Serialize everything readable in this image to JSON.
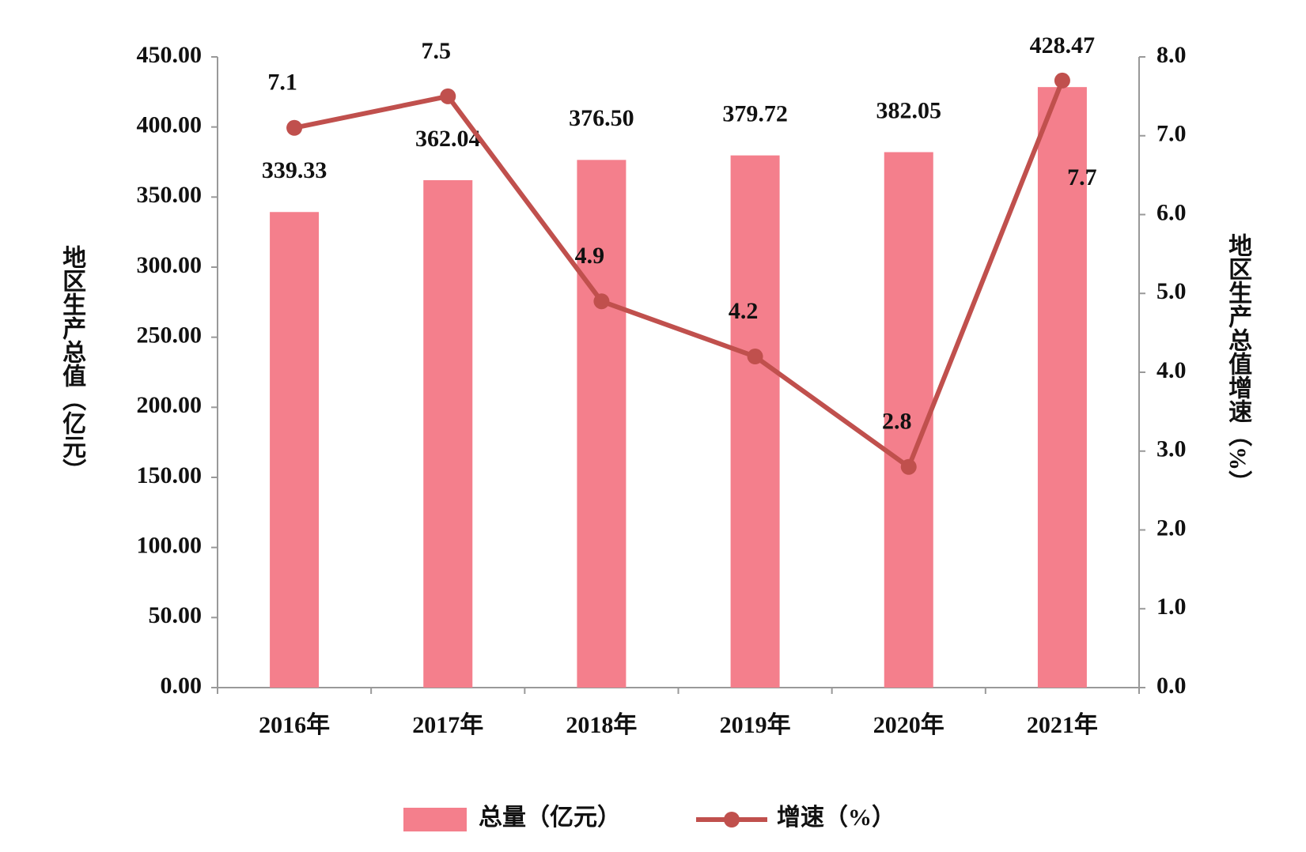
{
  "chart_data": {
    "type": "bar-line",
    "y_label": "地区生产总值（亿元）",
    "y2_label": "地区生产总值增速（%）",
    "categories": [
      "2016年",
      "2017年",
      "2018年",
      "2019年",
      "2020年",
      "2021年"
    ],
    "series": [
      {
        "name": "总量（亿元）",
        "type": "bar",
        "color": "#f47f8c",
        "values": [
          339.33,
          362.04,
          376.5,
          379.72,
          382.05,
          428.47
        ],
        "value_labels": [
          "339.33",
          "362.04",
          "376.50",
          "379.72",
          "382.05",
          "428.47"
        ]
      },
      {
        "name": "增速（%）",
        "type": "line",
        "axis": "y2",
        "color": "#c0504d",
        "values": [
          7.1,
          7.5,
          4.9,
          4.2,
          2.8,
          7.7
        ]
      }
    ],
    "ylim": [
      0,
      450
    ],
    "yticks": [
      {
        "value": 0,
        "label": "0.00"
      },
      {
        "value": 50,
        "label": "50.00"
      },
      {
        "value": 100,
        "label": "100.00"
      },
      {
        "value": 150,
        "label": "150.00"
      },
      {
        "value": 200,
        "label": "200.00"
      },
      {
        "value": 250,
        "label": "250.00"
      },
      {
        "value": 300,
        "label": "300.00"
      },
      {
        "value": 350,
        "label": "350.00"
      },
      {
        "value": 400,
        "label": "400.00"
      },
      {
        "value": 450,
        "label": "450.00"
      }
    ],
    "y2lim": [
      0,
      8
    ],
    "y2ticks": [
      {
        "value": 0,
        "label": "0.0"
      },
      {
        "value": 1,
        "label": "1.0"
      },
      {
        "value": 2,
        "label": "2.0"
      },
      {
        "value": 3,
        "label": "3.0"
      },
      {
        "value": 4,
        "label": "4.0"
      },
      {
        "value": 5,
        "label": "5.0"
      },
      {
        "value": 6,
        "label": "6.0"
      },
      {
        "value": 7,
        "label": "7.0"
      },
      {
        "value": 8,
        "label": "8.0"
      }
    ],
    "legend": "bottom"
  }
}
